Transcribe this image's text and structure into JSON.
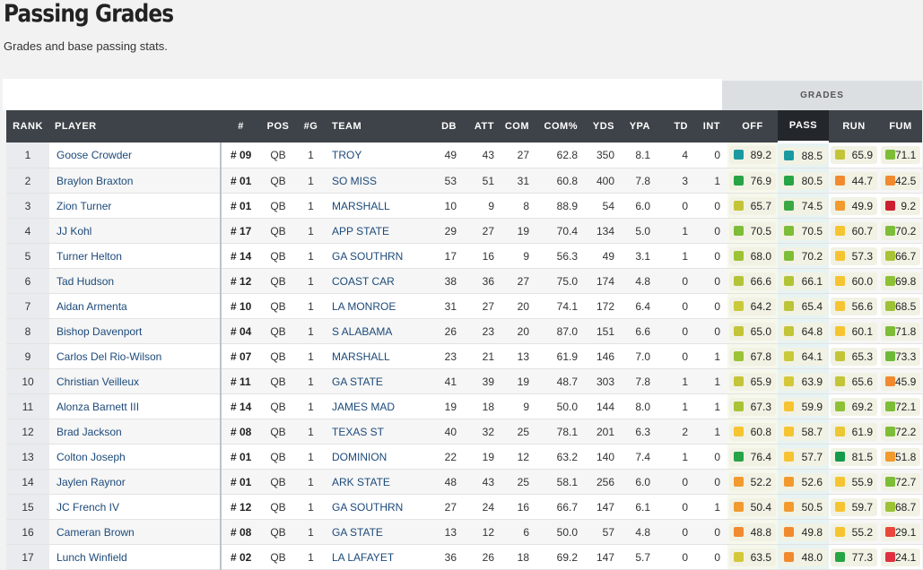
{
  "page": {
    "title": "Passing Grades",
    "subtitle": "Grades and base passing stats."
  },
  "grades_group_label": "GRADES",
  "headers": [
    "RANK",
    "PLAYER",
    "#",
    "POS",
    "#G",
    "TEAM",
    "DB",
    "ATT",
    "COM",
    "COM%",
    "YDS",
    "YPA",
    "TD",
    "INT",
    "OFF",
    "PASS",
    "RUN",
    "FUM"
  ],
  "active_sort_column": "PASS",
  "grade_colors": {
    "elite": "#1a9aa0",
    "high": "#26a446",
    "above_avg": "#82bd36",
    "avg": "#c9c93a",
    "below_avg": "#f6c431",
    "low": "#f18a2f",
    "poor": "#e9473b",
    "very_poor": "#cc2030"
  },
  "rows": [
    {
      "rank": "1",
      "player": "Goose Crowder",
      "num": "# 09",
      "pos": "QB",
      "g": "1",
      "team": "TROY",
      "db": "49",
      "att": "43",
      "com": "27",
      "comp": "62.8",
      "yds": "350",
      "ypa": "8.1",
      "td": "4",
      "int": "0",
      "off": "89.2",
      "off_c": "#1a9aa0",
      "pass": "88.5",
      "pass_c": "#1a9aa0",
      "run": "65.9",
      "run_c": "#c3c437",
      "fum": "71.1",
      "fum_c": "#7dbd37"
    },
    {
      "rank": "2",
      "player": "Braylon Braxton",
      "num": "# 01",
      "pos": "QB",
      "g": "1",
      "team": "SO MISS",
      "db": "53",
      "att": "51",
      "com": "31",
      "comp": "60.8",
      "yds": "400",
      "ypa": "7.8",
      "td": "3",
      "int": "1",
      "off": "76.9",
      "off_c": "#26a446",
      "pass": "80.5",
      "pass_c": "#26a446",
      "run": "44.7",
      "run_c": "#f18a2f",
      "fum": "42.5",
      "fum_c": "#f18a2f"
    },
    {
      "rank": "3",
      "player": "Zion Turner",
      "num": "# 01",
      "pos": "QB",
      "g": "1",
      "team": "MARSHALL",
      "db": "10",
      "att": "9",
      "com": "8",
      "comp": "88.9",
      "yds": "54",
      "ypa": "6.0",
      "td": "0",
      "int": "0",
      "off": "65.7",
      "off_c": "#c3c437",
      "pass": "74.5",
      "pass_c": "#3aa844",
      "run": "49.9",
      "run_c": "#f29a2e",
      "fum": "9.2",
      "fum_c": "#cc2030"
    },
    {
      "rank": "4",
      "player": "JJ Kohl",
      "num": "# 17",
      "pos": "QB",
      "g": "1",
      "team": "APP STATE",
      "db": "29",
      "att": "27",
      "com": "19",
      "comp": "70.4",
      "yds": "134",
      "ypa": "5.0",
      "td": "1",
      "int": "0",
      "off": "70.5",
      "off_c": "#7dbd37",
      "pass": "70.5",
      "pass_c": "#7dbd37",
      "run": "60.7",
      "run_c": "#f6c431",
      "fum": "70.2",
      "fum_c": "#7dbd37"
    },
    {
      "rank": "5",
      "player": "Turner Helton",
      "num": "# 14",
      "pos": "QB",
      "g": "1",
      "team": "GA SOUTHRN",
      "db": "17",
      "att": "16",
      "com": "9",
      "comp": "56.3",
      "yds": "49",
      "ypa": "3.1",
      "td": "1",
      "int": "0",
      "off": "68.0",
      "off_c": "#9cc236",
      "pass": "70.2",
      "pass_c": "#7dbd37",
      "run": "57.3",
      "run_c": "#f6c431",
      "fum": "66.7",
      "fum_c": "#a9c336"
    },
    {
      "rank": "6",
      "player": "Tad Hudson",
      "num": "# 12",
      "pos": "QB",
      "g": "1",
      "team": "COAST CAR",
      "db": "38",
      "att": "36",
      "com": "27",
      "comp": "75.0",
      "yds": "174",
      "ypa": "4.8",
      "td": "0",
      "int": "0",
      "off": "66.6",
      "off_c": "#b2c436",
      "pass": "66.1",
      "pass_c": "#b2c436",
      "run": "60.0",
      "run_c": "#f6c431",
      "fum": "69.8",
      "fum_c": "#8ec036"
    },
    {
      "rank": "7",
      "player": "Aidan Armenta",
      "num": "# 10",
      "pos": "QB",
      "g": "1",
      "team": "LA MONROE",
      "db": "31",
      "att": "27",
      "com": "20",
      "comp": "74.1",
      "yds": "172",
      "ypa": "6.4",
      "td": "0",
      "int": "0",
      "off": "64.2",
      "off_c": "#c9c93a",
      "pass": "65.4",
      "pass_c": "#bcc437",
      "run": "56.6",
      "run_c": "#f6c431",
      "fum": "68.5",
      "fum_c": "#9cc236"
    },
    {
      "rank": "8",
      "player": "Bishop Davenport",
      "num": "# 04",
      "pos": "QB",
      "g": "1",
      "team": "S ALABAMA",
      "db": "26",
      "att": "23",
      "com": "20",
      "comp": "87.0",
      "yds": "151",
      "ypa": "6.6",
      "td": "0",
      "int": "0",
      "off": "65.0",
      "off_c": "#c3c437",
      "pass": "64.8",
      "pass_c": "#c3c437",
      "run": "60.1",
      "run_c": "#f6c431",
      "fum": "71.8",
      "fum_c": "#7dbd37"
    },
    {
      "rank": "9",
      "player": "Carlos Del Rio-Wilson",
      "num": "# 07",
      "pos": "QB",
      "g": "1",
      "team": "MARSHALL",
      "db": "23",
      "att": "21",
      "com": "13",
      "comp": "61.9",
      "yds": "146",
      "ypa": "7.0",
      "td": "0",
      "int": "1",
      "off": "67.8",
      "off_c": "#9cc236",
      "pass": "64.1",
      "pass_c": "#c9c93a",
      "run": "65.3",
      "run_c": "#c3c437",
      "fum": "73.3",
      "fum_c": "#6cb938"
    },
    {
      "rank": "10",
      "player": "Christian Veilleux",
      "num": "# 11",
      "pos": "QB",
      "g": "1",
      "team": "GA STATE",
      "db": "41",
      "att": "39",
      "com": "19",
      "comp": "48.7",
      "yds": "303",
      "ypa": "7.8",
      "td": "1",
      "int": "1",
      "off": "65.9",
      "off_c": "#c3c437",
      "pass": "63.9",
      "pass_c": "#d4c83a",
      "run": "65.6",
      "run_c": "#c3c437",
      "fum": "45.9",
      "fum_c": "#f18a2f"
    },
    {
      "rank": "11",
      "player": "Alonza Barnett III",
      "num": "# 14",
      "pos": "QB",
      "g": "1",
      "team": "JAMES MAD",
      "db": "19",
      "att": "18",
      "com": "9",
      "comp": "50.0",
      "yds": "144",
      "ypa": "8.0",
      "td": "1",
      "int": "1",
      "off": "67.3",
      "off_c": "#a9c336",
      "pass": "59.9",
      "pass_c": "#f6c431",
      "run": "69.2",
      "run_c": "#8ec036",
      "fum": "72.1",
      "fum_c": "#7dbd37"
    },
    {
      "rank": "12",
      "player": "Brad Jackson",
      "num": "# 08",
      "pos": "QB",
      "g": "1",
      "team": "TEXAS ST",
      "db": "40",
      "att": "32",
      "com": "25",
      "comp": "78.1",
      "yds": "201",
      "ypa": "6.3",
      "td": "2",
      "int": "1",
      "off": "60.8",
      "off_c": "#f6c431",
      "pass": "58.7",
      "pass_c": "#f6c431",
      "run": "61.9",
      "run_c": "#ecc634",
      "fum": "72.2",
      "fum_c": "#7dbd37"
    },
    {
      "rank": "13",
      "player": "Colton Joseph",
      "num": "# 01",
      "pos": "QB",
      "g": "1",
      "team": "DOMINION",
      "db": "22",
      "att": "19",
      "com": "12",
      "comp": "63.2",
      "yds": "140",
      "ypa": "7.4",
      "td": "1",
      "int": "0",
      "off": "76.4",
      "off_c": "#26a446",
      "pass": "57.7",
      "pass_c": "#f6c431",
      "run": "81.5",
      "run_c": "#139a4a",
      "fum": "51.8",
      "fum_c": "#f29a2e"
    },
    {
      "rank": "14",
      "player": "Jaylen Raynor",
      "num": "# 01",
      "pos": "QB",
      "g": "1",
      "team": "ARK STATE",
      "db": "48",
      "att": "43",
      "com": "25",
      "comp": "58.1",
      "yds": "256",
      "ypa": "6.0",
      "td": "0",
      "int": "0",
      "off": "52.2",
      "off_c": "#f29a2e",
      "pass": "52.6",
      "pass_c": "#f29a2e",
      "run": "55.9",
      "run_c": "#f6c431",
      "fum": "72.7",
      "fum_c": "#7dbd37"
    },
    {
      "rank": "15",
      "player": "JC French IV",
      "num": "# 12",
      "pos": "QB",
      "g": "1",
      "team": "GA SOUTHRN",
      "db": "27",
      "att": "24",
      "com": "16",
      "comp": "66.7",
      "yds": "147",
      "ypa": "6.1",
      "td": "0",
      "int": "1",
      "off": "50.4",
      "off_c": "#f29a2e",
      "pass": "50.5",
      "pass_c": "#f29a2e",
      "run": "59.7",
      "run_c": "#f6c431",
      "fum": "68.7",
      "fum_c": "#9cc236"
    },
    {
      "rank": "16",
      "player": "Cameran Brown",
      "num": "# 08",
      "pos": "QB",
      "g": "1",
      "team": "GA STATE",
      "db": "13",
      "att": "12",
      "com": "6",
      "comp": "50.0",
      "yds": "57",
      "ypa": "4.8",
      "td": "0",
      "int": "0",
      "off": "48.8",
      "off_c": "#f18a2f",
      "pass": "49.8",
      "pass_c": "#f18a2f",
      "run": "55.2",
      "run_c": "#f6c431",
      "fum": "29.1",
      "fum_c": "#e9473b"
    },
    {
      "rank": "17",
      "player": "Lunch Winfield",
      "num": "# 02",
      "pos": "QB",
      "g": "1",
      "team": "LA LAFAYET",
      "db": "36",
      "att": "26",
      "com": "18",
      "comp": "69.2",
      "yds": "147",
      "ypa": "5.7",
      "td": "0",
      "int": "0",
      "off": "63.5",
      "off_c": "#d4c83a",
      "pass": "48.0",
      "pass_c": "#f18a2f",
      "run": "77.3",
      "run_c": "#26a446",
      "fum": "24.1",
      "fum_c": "#e03040"
    }
  ]
}
